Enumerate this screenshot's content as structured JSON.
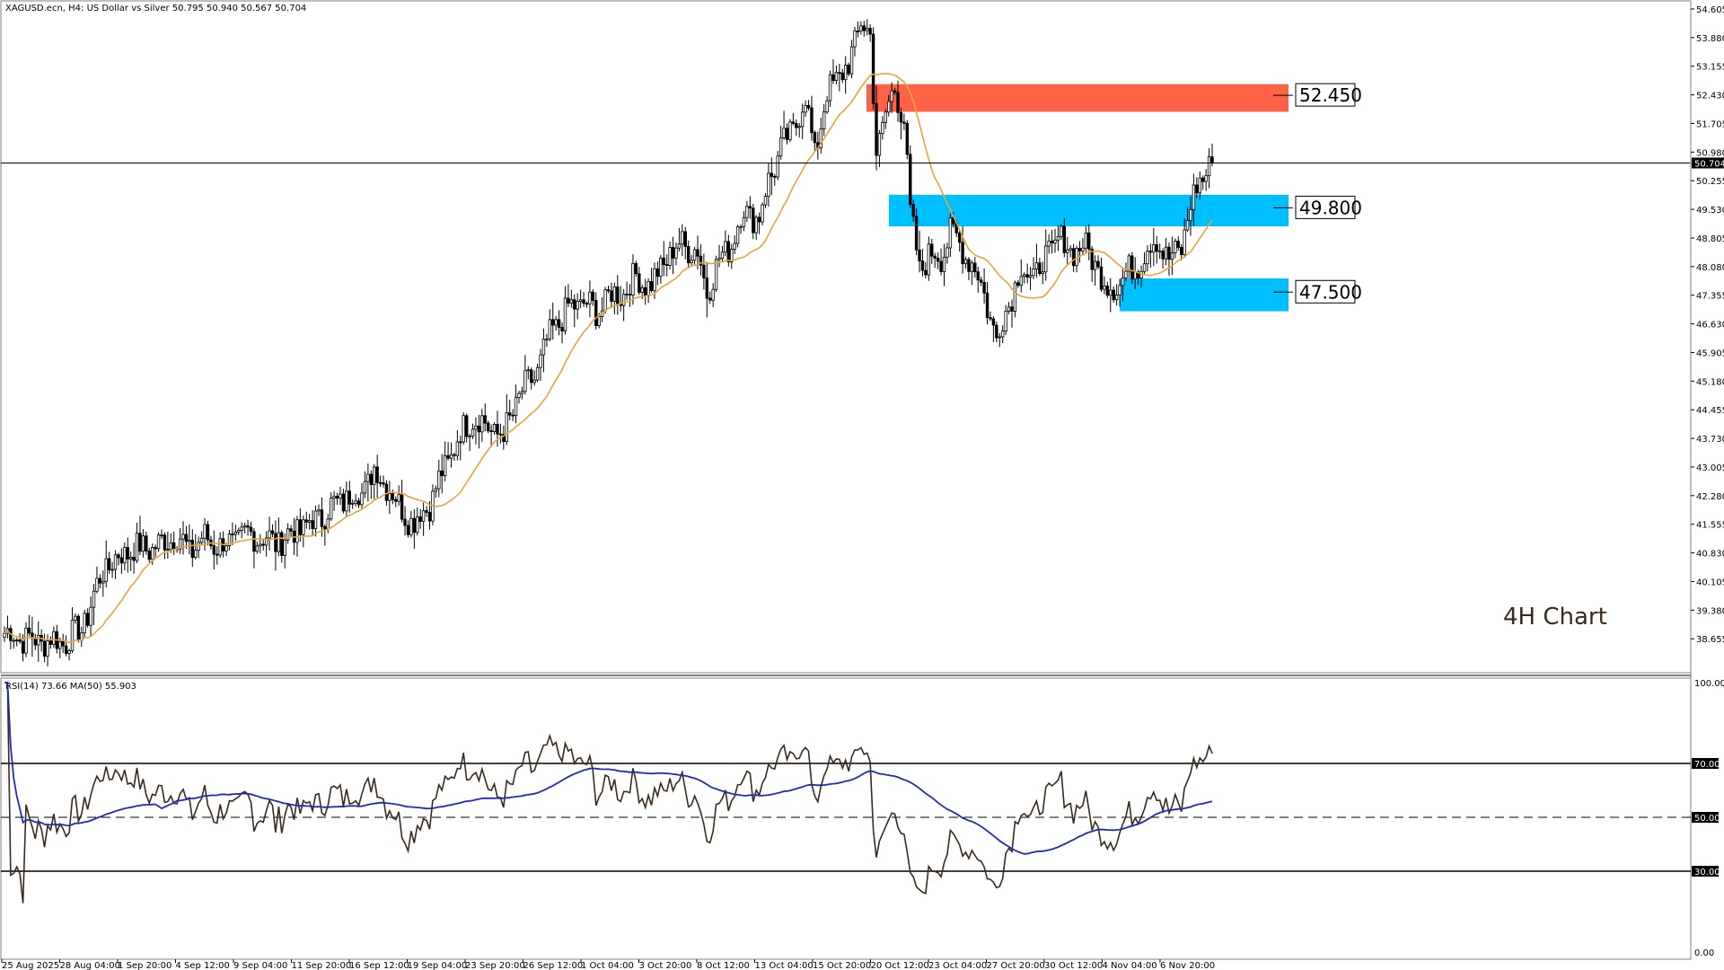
{
  "header": {
    "title": "XAGUSD.ecn, H4:  US Dollar vs Silver  50.795 50.940 50.567 50.704"
  },
  "annotation": {
    "text": "4H Chart"
  },
  "colors": {
    "candle": "#000000",
    "ma": "#e8a43a",
    "resistance_zone": "#ff6347",
    "support_zone": "#00bfff",
    "rsi_line": "#3a2a1a",
    "rsi_ma": "#1e2bb8"
  },
  "chart_data": [
    {
      "type": "candlestick",
      "title": "",
      "x_tick_labels": [
        "25 Aug 2025",
        "28 Aug 04:00",
        "1 Sep 20:00",
        "4 Sep 12:00",
        "9 Sep 04:00",
        "11 Sep 20:00",
        "16 Sep 12:00",
        "19 Sep 04:00",
        "23 Sep 20:00",
        "26 Sep 12:00",
        "1 Oct 04:00",
        "3 Oct 20:00",
        "8 Oct 12:00",
        "13 Oct 04:00",
        "15 Oct 20:00",
        "20 Oct 12:00",
        "23 Oct 04:00",
        "27 Oct 20:00",
        "30 Oct 12:00",
        "4 Nov 04:00",
        "6 Nov 20:00"
      ],
      "y_tick_labels": [
        "54.605",
        "53.880",
        "53.155",
        "52.430",
        "51.705",
        "50.980",
        "50.255",
        "49.530",
        "48.805",
        "48.080",
        "47.355",
        "46.630",
        "45.905",
        "45.180",
        "44.455",
        "43.730",
        "43.005",
        "42.280",
        "41.555",
        "40.830",
        "40.105",
        "39.380",
        "38.655"
      ],
      "ylim": [
        38.0,
        54.65
      ],
      "current_price": "50.704",
      "close_path": [
        [
          0,
          38.8
        ],
        [
          10,
          38.6
        ],
        [
          20,
          38.6
        ],
        [
          25,
          38.9
        ],
        [
          28,
          39.5
        ],
        [
          32,
          40.4
        ],
        [
          40,
          40.9
        ],
        [
          50,
          41.0
        ],
        [
          55,
          41.3
        ],
        [
          60,
          40.9
        ],
        [
          65,
          41.2
        ],
        [
          70,
          41.0
        ],
        [
          80,
          41.3
        ],
        [
          88,
          41.1
        ],
        [
          95,
          41.4
        ],
        [
          100,
          41.6
        ],
        [
          110,
          42.2
        ],
        [
          116,
          42.4
        ],
        [
          120,
          42.9
        ],
        [
          125,
          42.5
        ],
        [
          128,
          42.0
        ],
        [
          133,
          41.6
        ],
        [
          138,
          42.1
        ],
        [
          142,
          42.8
        ],
        [
          147,
          43.7
        ],
        [
          152,
          44.3
        ],
        [
          157,
          44.0
        ],
        [
          162,
          43.8
        ],
        [
          167,
          44.8
        ],
        [
          172,
          45.3
        ],
        [
          178,
          46.5
        ],
        [
          183,
          47.0
        ],
        [
          188,
          47.2
        ],
        [
          192,
          46.9
        ],
        [
          196,
          47.3
        ],
        [
          200,
          47.4
        ],
        [
          205,
          47.8
        ],
        [
          210,
          47.6
        ],
        [
          215,
          48.3
        ],
        [
          220,
          48.7
        ],
        [
          225,
          48.4
        ],
        [
          228,
          47.5
        ],
        [
          232,
          48.2
        ],
        [
          236,
          48.7
        ],
        [
          240,
          49.5
        ],
        [
          245,
          49.3
        ],
        [
          248,
          50.3
        ],
        [
          252,
          51.0
        ],
        [
          256,
          51.6
        ],
        [
          260,
          52.3
        ],
        [
          263,
          51.0
        ],
        [
          267,
          52.4
        ],
        [
          270,
          52.9
        ],
        [
          274,
          53.1
        ],
        [
          278,
          54.4
        ],
        [
          281,
          53.8
        ],
        [
          283,
          51.0
        ],
        [
          286,
          52.0
        ],
        [
          289,
          52.5
        ],
        [
          292,
          51.9
        ],
        [
          294,
          49.4
        ],
        [
          297,
          48.0
        ],
        [
          300,
          48.4
        ],
        [
          304,
          48.3
        ],
        [
          307,
          49.0
        ],
        [
          310,
          48.6
        ],
        [
          314,
          48.2
        ],
        [
          318,
          47.4
        ],
        [
          322,
          46.2
        ],
        [
          325,
          47.0
        ],
        [
          330,
          48.0
        ],
        [
          334,
          47.8
        ],
        [
          338,
          48.3
        ],
        [
          342,
          48.8
        ],
        [
          346,
          48.5
        ],
        [
          350,
          48.6
        ],
        [
          354,
          48.2
        ],
        [
          358,
          47.5
        ],
        [
          362,
          47.7
        ],
        [
          366,
          48.0
        ],
        [
          370,
          48.4
        ],
        [
          374,
          48.8
        ],
        [
          378,
          48.2
        ],
        [
          382,
          48.6
        ],
        [
          385,
          49.6
        ],
        [
          388,
          50.3
        ],
        [
          392,
          50.7
        ]
      ],
      "moving_average": {
        "period": 20,
        "color": "#e8a43a"
      },
      "levels": [
        {
          "label": "52.450",
          "role": "resistance",
          "high": 52.7,
          "low": 52.0
        },
        {
          "label": "49.800",
          "role": "support",
          "high": 49.9,
          "low": 49.1
        },
        {
          "label": "47.500",
          "role": "support",
          "high": 47.78,
          "low": 46.95
        }
      ],
      "annotations": [
        "4H Chart"
      ]
    },
    {
      "type": "line",
      "title": "RSI(14) 73.66 MA(50) 55.903",
      "ylim": [
        0,
        100
      ],
      "y_tick_labels": [
        "100.00",
        "70.00",
        "50.00",
        "30.00",
        "0.00"
      ],
      "levels": [
        70,
        50,
        30
      ],
      "rsi_last": 73.66,
      "ma_last": 55.903,
      "series": [
        {
          "name": "RSI(14)",
          "source": "computed from close_path",
          "period": 14
        },
        {
          "name": "MA(50)",
          "source": "moving average of RSI",
          "period": 50
        }
      ]
    }
  ]
}
